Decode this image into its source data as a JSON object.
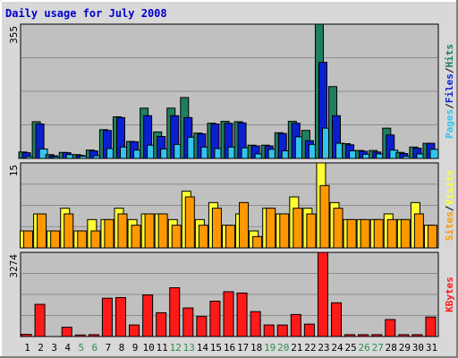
{
  "page": {
    "title": "Daily usage for July 2008"
  },
  "colors": {
    "background": "#d8d8d8",
    "plot_bg": "#c0c0c0",
    "hits": "#1f7f60",
    "files": "#0a1fd0",
    "pages": "#33c4ee",
    "visits": "#ffff33",
    "sites": "#ff9800",
    "kbytes": "#ff1a1a",
    "weekend_label": "#2f8f4f",
    "weekday_label": "#000000"
  },
  "chart_data": [
    {
      "type": "bar",
      "title": "Daily usage for July 2008",
      "ymax_label": "355",
      "ylim": [
        0,
        355
      ],
      "grid": true,
      "categories": [
        "1",
        "2",
        "3",
        "4",
        "5",
        "6",
        "7",
        "8",
        "9",
        "10",
        "11",
        "12",
        "13",
        "14",
        "15",
        "16",
        "17",
        "18",
        "19",
        "20",
        "21",
        "22",
        "23",
        "24",
        "25",
        "26",
        "27",
        "28",
        "29",
        "30",
        "31"
      ],
      "weekend_days": [
        "5",
        "6",
        "12",
        "13",
        "19",
        "20",
        "26",
        "27"
      ],
      "side_labels": [
        "Pages",
        "Files",
        "Hits"
      ],
      "series": [
        {
          "name": "Hits",
          "values": [
            17,
            97,
            10,
            16,
            10,
            22,
            76,
            110,
            45,
            133,
            70,
            133,
            161,
            67,
            93,
            98,
            97,
            35,
            35,
            68,
            98,
            74,
            355,
            190,
            39,
            21,
            21,
            80,
            16,
            30,
            40
          ]
        },
        {
          "name": "Files",
          "values": [
            15,
            91,
            7,
            15,
            8,
            20,
            74,
            108,
            44,
            113,
            58,
            113,
            108,
            65,
            91,
            93,
            94,
            33,
            33,
            66,
            93,
            47,
            254,
            113,
            36,
            19,
            17,
            62,
            13,
            27,
            40
          ]
        },
        {
          "name": "Pages",
          "values": [
            5,
            25,
            4,
            10,
            6,
            7,
            26,
            30,
            22,
            35,
            25,
            37,
            56,
            30,
            26,
            30,
            28,
            12,
            24,
            20,
            57,
            37,
            80,
            40,
            20,
            11,
            12,
            22,
            6,
            12,
            24
          ]
        }
      ]
    },
    {
      "type": "bar",
      "ymax_label": "15",
      "ylim": [
        0,
        15
      ],
      "grid": true,
      "categories": [
        "1",
        "2",
        "3",
        "4",
        "5",
        "6",
        "7",
        "8",
        "9",
        "10",
        "11",
        "12",
        "13",
        "14",
        "15",
        "16",
        "17",
        "18",
        "19",
        "20",
        "21",
        "22",
        "23",
        "24",
        "25",
        "26",
        "27",
        "28",
        "29",
        "30",
        "31"
      ],
      "side_labels": [
        "Sites",
        "Visits"
      ],
      "series": [
        {
          "name": "Visits",
          "values": [
            3,
            6,
            3,
            7,
            3,
            5,
            5,
            7,
            5,
            6,
            6,
            5,
            10,
            5,
            8,
            4,
            6,
            3,
            7,
            6,
            9,
            7,
            15,
            8,
            5,
            5,
            5,
            6,
            5,
            8,
            4
          ]
        },
        {
          "name": "Sites",
          "values": [
            3,
            6,
            3,
            6,
            3,
            3,
            5,
            6,
            4,
            6,
            6,
            4,
            9,
            4,
            7,
            4,
            8,
            2,
            7,
            6,
            7,
            6,
            11,
            7,
            5,
            5,
            5,
            5,
            5,
            6,
            4
          ]
        }
      ]
    },
    {
      "type": "bar",
      "ymax_label": "3274",
      "ylim": [
        0,
        3274
      ],
      "grid": true,
      "categories": [
        "1",
        "2",
        "3",
        "4",
        "5",
        "6",
        "7",
        "8",
        "9",
        "10",
        "11",
        "12",
        "13",
        "14",
        "15",
        "16",
        "17",
        "18",
        "19",
        "20",
        "21",
        "22",
        "23",
        "24",
        "25",
        "26",
        "27",
        "28",
        "29",
        "30",
        "31"
      ],
      "side_labels": [
        "KBytes"
      ],
      "series": [
        {
          "name": "KBytes",
          "values": [
            84,
            1252,
            0,
            362,
            60,
            72,
            1490,
            1516,
            450,
            1618,
            924,
            1898,
            1112,
            780,
            1376,
            1744,
            1692,
            970,
            450,
            448,
            858,
            482,
            3274,
            1312,
            72,
            72,
            72,
            660,
            72,
            72,
            758
          ]
        }
      ]
    }
  ]
}
